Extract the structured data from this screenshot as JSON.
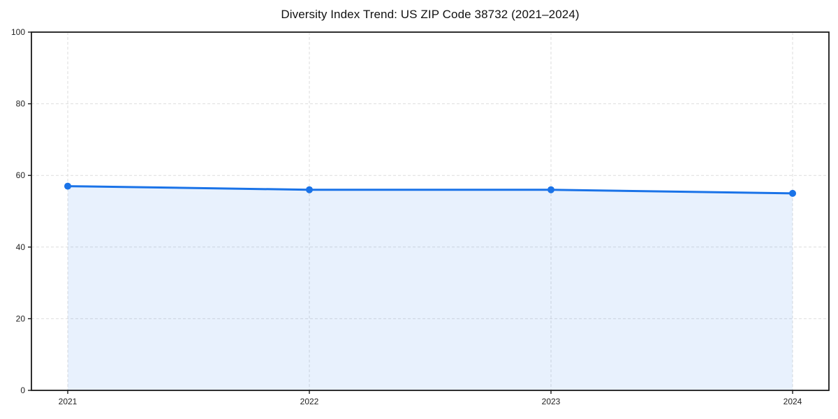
{
  "chart_data": {
    "type": "area",
    "title": "Diversity Index Trend: US ZIP Code 38732 (2021–2024)",
    "categories": [
      "2021",
      "2022",
      "2023",
      "2024"
    ],
    "series": [
      {
        "name": "Diversity Index",
        "values": [
          57,
          56,
          56,
          55
        ]
      }
    ],
    "xlabel": "",
    "ylabel": "",
    "ylim": [
      0,
      100
    ],
    "yticks": [
      0,
      20,
      40,
      60,
      80,
      100
    ],
    "grid": true,
    "grid_style": "dashed",
    "legend": "none",
    "colors": {
      "line": "#1a73e8",
      "marker": "#1a73e8",
      "fill": "rgba(26,115,232,0.10)",
      "grid": "#dedede",
      "axis": "#1a1a1a",
      "tick_text": "#222222",
      "title_text": "#111111",
      "background": "#ffffff"
    }
  }
}
